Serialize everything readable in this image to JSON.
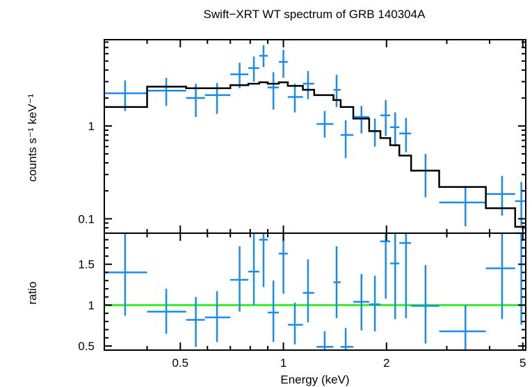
{
  "chart_data": [
    {
      "type": "scatter",
      "title": "Swift−XRT WT spectrum of GRB 140304A",
      "xlabel": "Energy (keV)",
      "ylabel": "counts s⁻¹ keV⁻¹",
      "x_scale": "log",
      "y_scale": "log",
      "xlim": [
        0.3,
        5.1
      ],
      "ylim": [
        0.07,
        8.5
      ],
      "y_tick_labels": [
        {
          "value": 0.1,
          "label": "0.1"
        },
        {
          "value": 1,
          "label": "1"
        }
      ],
      "colors": {
        "data": "#1a8cf0",
        "model": "#000000"
      },
      "series": [
        {
          "kind": "errorbars",
          "points": [
            {
              "x": 0.345,
              "xlo": 0.3,
              "xhi": 0.4,
              "y": 2.25,
              "ylo": 1.45,
              "yhi": 3.1
            },
            {
              "x": 0.455,
              "xlo": 0.4,
              "xhi": 0.52,
              "y": 2.4,
              "ylo": 1.65,
              "yhi": 3.3
            },
            {
              "x": 0.555,
              "xlo": 0.52,
              "xhi": 0.59,
              "y": 2.0,
              "ylo": 1.25,
              "yhi": 2.85
            },
            {
              "x": 0.64,
              "xlo": 0.59,
              "xhi": 0.7,
              "y": 2.15,
              "ylo": 1.35,
              "yhi": 2.9
            },
            {
              "x": 0.745,
              "xlo": 0.7,
              "xhi": 0.79,
              "y": 3.6,
              "ylo": 2.55,
              "yhi": 4.8
            },
            {
              "x": 0.82,
              "xlo": 0.79,
              "xhi": 0.85,
              "y": 4.2,
              "ylo": 3.0,
              "yhi": 5.6
            },
            {
              "x": 0.875,
              "xlo": 0.85,
              "xhi": 0.9,
              "y": 5.7,
              "ylo": 4.3,
              "yhi": 7.4
            },
            {
              "x": 0.935,
              "xlo": 0.9,
              "xhi": 0.97,
              "y": 2.6,
              "ylo": 1.5,
              "yhi": 3.8
            },
            {
              "x": 1.0,
              "xlo": 0.97,
              "xhi": 1.03,
              "y": 4.9,
              "ylo": 3.3,
              "yhi": 6.6
            },
            {
              "x": 1.08,
              "xlo": 1.03,
              "xhi": 1.14,
              "y": 2.05,
              "ylo": 1.4,
              "yhi": 2.85
            },
            {
              "x": 1.18,
              "xlo": 1.14,
              "xhi": 1.23,
              "y": 2.85,
              "ylo": 1.95,
              "yhi": 3.9
            },
            {
              "x": 1.32,
              "xlo": 1.25,
              "xhi": 1.4,
              "y": 1.05,
              "ylo": 0.75,
              "yhi": 1.45
            },
            {
              "x": 1.43,
              "xlo": 1.4,
              "xhi": 1.47,
              "y": 2.45,
              "ylo": 1.6,
              "yhi": 3.55
            },
            {
              "x": 1.52,
              "xlo": 1.47,
              "xhi": 1.6,
              "y": 0.8,
              "ylo": 0.45,
              "yhi": 1.15
            },
            {
              "x": 1.69,
              "xlo": 1.6,
              "xhi": 1.78,
              "y": 1.25,
              "ylo": 0.83,
              "yhi": 1.65
            },
            {
              "x": 1.85,
              "xlo": 1.78,
              "xhi": 1.92,
              "y": 0.88,
              "ylo": 0.6,
              "yhi": 1.2
            },
            {
              "x": 1.99,
              "xlo": 1.92,
              "xhi": 2.05,
              "y": 1.3,
              "ylo": 0.78,
              "yhi": 1.9
            },
            {
              "x": 2.12,
              "xlo": 2.05,
              "xhi": 2.18,
              "y": 0.97,
              "ylo": 0.6,
              "yhi": 1.4
            },
            {
              "x": 2.28,
              "xlo": 2.18,
              "xhi": 2.36,
              "y": 0.83,
              "ylo": 0.52,
              "yhi": 1.22
            },
            {
              "x": 2.6,
              "xlo": 2.36,
              "xhi": 2.85,
              "y": 0.33,
              "ylo": 0.17,
              "yhi": 0.5
            },
            {
              "x": 3.4,
              "xlo": 2.85,
              "xhi": 3.9,
              "y": 0.15,
              "ylo": 0.083,
              "yhi": 0.22
            },
            {
              "x": 4.35,
              "xlo": 3.9,
              "xhi": 4.75,
              "y": 0.185,
              "ylo": 0.108,
              "yhi": 0.29
            },
            {
              "x": 4.95,
              "xlo": 4.75,
              "xhi": 5.1,
              "y": 0.155,
              "ylo": 0.085,
              "yhi": 0.25
            }
          ]
        },
        {
          "kind": "step",
          "bins": [
            {
              "xlo": 0.3,
              "xhi": 0.4,
              "y": 1.6
            },
            {
              "xlo": 0.4,
              "xhi": 0.52,
              "y": 2.65
            },
            {
              "xlo": 0.52,
              "xhi": 0.59,
              "y": 2.55
            },
            {
              "xlo": 0.59,
              "xhi": 0.7,
              "y": 2.55
            },
            {
              "xlo": 0.7,
              "xhi": 0.79,
              "y": 2.75
            },
            {
              "xlo": 0.79,
              "xhi": 0.85,
              "y": 2.85
            },
            {
              "xlo": 0.85,
              "xhi": 0.9,
              "y": 2.95
            },
            {
              "xlo": 0.9,
              "xhi": 0.97,
              "y": 2.85
            },
            {
              "xlo": 0.97,
              "xhi": 1.03,
              "y": 2.95
            },
            {
              "xlo": 1.03,
              "xhi": 1.14,
              "y": 2.7
            },
            {
              "xlo": 1.14,
              "xhi": 1.23,
              "y": 2.45
            },
            {
              "xlo": 1.23,
              "xhi": 1.4,
              "y": 2.15
            },
            {
              "xlo": 1.4,
              "xhi": 1.47,
              "y": 1.9
            },
            {
              "xlo": 1.47,
              "xhi": 1.6,
              "y": 1.6
            },
            {
              "xlo": 1.6,
              "xhi": 1.78,
              "y": 1.2
            },
            {
              "xlo": 1.78,
              "xhi": 1.92,
              "y": 0.88
            },
            {
              "xlo": 1.92,
              "xhi": 2.05,
              "y": 0.74
            },
            {
              "xlo": 2.05,
              "xhi": 2.18,
              "y": 0.62
            },
            {
              "xlo": 2.18,
              "xhi": 2.36,
              "y": 0.48
            },
            {
              "xlo": 2.36,
              "xhi": 2.85,
              "y": 0.33
            },
            {
              "xlo": 2.85,
              "xhi": 3.9,
              "y": 0.22
            },
            {
              "xlo": 3.9,
              "xhi": 4.75,
              "y": 0.13
            },
            {
              "xlo": 4.75,
              "xhi": 5.1,
              "y": 0.082
            }
          ]
        }
      ]
    },
    {
      "type": "scatter",
      "xlabel": "Energy (keV)",
      "ylabel": "ratio",
      "x_scale": "log",
      "xlim": [
        0.3,
        5.1
      ],
      "ylim": [
        0.45,
        1.88
      ],
      "x_tick_labels": [
        {
          "value": 0.5,
          "label": "0.5"
        },
        {
          "value": 1,
          "label": "1"
        },
        {
          "value": 2,
          "label": "2"
        },
        {
          "value": 5,
          "label": "5"
        }
      ],
      "y_tick_labels": [
        {
          "value": 0.5,
          "label": "0.5"
        },
        {
          "value": 1,
          "label": "1"
        },
        {
          "value": 1.5,
          "label": "1.5"
        }
      ],
      "reference_line": 1,
      "colors": {
        "data": "#1a8cf0",
        "reference": "#33ee22"
      },
      "series": [
        {
          "kind": "errorbars",
          "points": [
            {
              "x": 0.345,
              "xlo": 0.3,
              "xhi": 0.4,
              "y": 1.4,
              "ylo": 0.87,
              "yhi": 1.88
            },
            {
              "x": 0.455,
              "xlo": 0.4,
              "xhi": 0.52,
              "y": 0.92,
              "ylo": 0.65,
              "yhi": 1.2
            },
            {
              "x": 0.555,
              "xlo": 0.52,
              "xhi": 0.59,
              "y": 0.82,
              "ylo": 0.49,
              "yhi": 1.1
            },
            {
              "x": 0.64,
              "xlo": 0.59,
              "xhi": 0.7,
              "y": 0.85,
              "ylo": 0.55,
              "yhi": 1.17
            },
            {
              "x": 0.745,
              "xlo": 0.7,
              "xhi": 0.79,
              "y": 1.31,
              "ylo": 0.92,
              "yhi": 1.72
            },
            {
              "x": 0.82,
              "xlo": 0.79,
              "xhi": 0.85,
              "y": 1.41,
              "ylo": 1.0,
              "yhi": 1.88
            },
            {
              "x": 0.875,
              "xlo": 0.85,
              "xhi": 0.9,
              "y": 1.8,
              "ylo": 1.22,
              "yhi": 1.88
            },
            {
              "x": 0.935,
              "xlo": 0.9,
              "xhi": 0.97,
              "y": 0.91,
              "ylo": 0.55,
              "yhi": 1.3
            },
            {
              "x": 1.0,
              "xlo": 0.97,
              "xhi": 1.03,
              "y": 1.63,
              "ylo": 1.14,
              "yhi": 1.88
            },
            {
              "x": 1.08,
              "xlo": 1.03,
              "xhi": 1.14,
              "y": 0.76,
              "ylo": 0.52,
              "yhi": 1.03
            },
            {
              "x": 1.18,
              "xlo": 1.14,
              "xhi": 1.23,
              "y": 1.15,
              "ylo": 0.79,
              "yhi": 1.56
            },
            {
              "x": 1.32,
              "xlo": 1.25,
              "xhi": 1.4,
              "y": 0.49,
              "ylo": 0.45,
              "yhi": 0.68
            },
            {
              "x": 1.43,
              "xlo": 1.4,
              "xhi": 1.47,
              "y": 1.28,
              "ylo": 0.84,
              "yhi": 1.72
            },
            {
              "x": 1.52,
              "xlo": 1.47,
              "xhi": 1.6,
              "y": 0.49,
              "ylo": 0.45,
              "yhi": 0.72
            },
            {
              "x": 1.69,
              "xlo": 1.6,
              "xhi": 1.78,
              "y": 1.04,
              "ylo": 0.69,
              "yhi": 1.38
            },
            {
              "x": 1.85,
              "xlo": 1.78,
              "xhi": 1.92,
              "y": 1.01,
              "ylo": 0.68,
              "yhi": 1.36
            },
            {
              "x": 1.99,
              "xlo": 1.92,
              "xhi": 2.05,
              "y": 1.78,
              "ylo": 1.08,
              "yhi": 1.88
            },
            {
              "x": 2.12,
              "xlo": 2.05,
              "xhi": 2.18,
              "y": 1.51,
              "ylo": 0.83,
              "yhi": 1.88
            },
            {
              "x": 2.28,
              "xlo": 2.18,
              "xhi": 2.36,
              "y": 1.76,
              "ylo": 0.84,
              "yhi": 1.88
            },
            {
              "x": 2.6,
              "xlo": 2.36,
              "xhi": 2.85,
              "y": 0.99,
              "ylo": 0.53,
              "yhi": 1.49
            },
            {
              "x": 3.4,
              "xlo": 2.85,
              "xhi": 3.9,
              "y": 0.68,
              "ylo": 0.45,
              "yhi": 1.0
            },
            {
              "x": 4.35,
              "xlo": 3.9,
              "xhi": 4.75,
              "y": 1.45,
              "ylo": 0.83,
              "yhi": 1.88
            },
            {
              "x": 4.95,
              "xlo": 4.75,
              "xhi": 5.1,
              "y": 1.88,
              "ylo": 0.76,
              "yhi": 1.88
            }
          ]
        }
      ]
    }
  ]
}
